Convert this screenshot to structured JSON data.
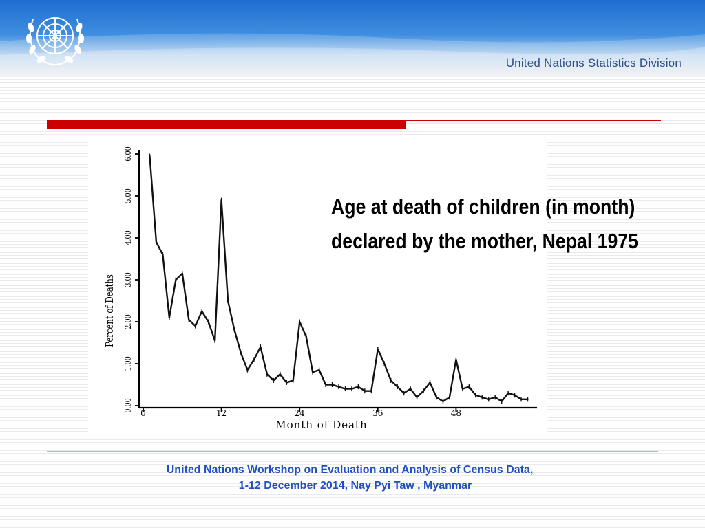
{
  "header": {
    "org_name": "United Nations Statistics Division",
    "logo_icon": "un-emblem-icon",
    "colors": {
      "top_blue": "#1d6fd0",
      "org_text": "#2f4f86"
    }
  },
  "accent_color": "#cc0000",
  "chart_title_lines": [
    "Age at death of children (in month)",
    "declared by the mother, Nepal 1975"
  ],
  "chart_data": {
    "type": "line",
    "xlabel": "Month of Death",
    "ylabel": "Percent of Deaths",
    "xlim": [
      0,
      60
    ],
    "ylim": [
      0,
      6
    ],
    "x_ticks": [
      0,
      12,
      24,
      36,
      48
    ],
    "x_tick_labels": [
      "0",
      "12",
      "24",
      "36",
      "48"
    ],
    "y_ticks": [
      0,
      1,
      2,
      3,
      4,
      5,
      6
    ],
    "y_tick_labels": [
      "0.00",
      "1.00",
      "2.00",
      "3.00",
      "4.00",
      "5.00",
      "6.00"
    ],
    "grid": false,
    "series": [
      {
        "x": [
          1,
          2,
          3,
          4,
          5,
          6,
          7,
          8,
          9,
          10,
          11,
          12,
          13,
          14,
          15,
          16,
          17,
          18,
          19,
          20,
          21,
          22,
          23,
          24,
          25,
          26,
          27,
          28,
          29,
          30,
          31,
          32,
          33,
          34,
          35,
          36,
          37,
          38,
          39,
          40,
          41,
          42,
          43,
          44,
          45,
          46,
          47,
          48,
          49,
          50,
          51,
          52,
          53,
          54,
          55,
          56,
          57,
          58,
          59
        ],
        "y": [
          5.95,
          3.9,
          3.6,
          2.1,
          3.0,
          3.15,
          2.05,
          1.9,
          2.25,
          2.0,
          1.55,
          4.9,
          2.5,
          1.8,
          1.25,
          0.85,
          1.1,
          1.4,
          0.75,
          0.6,
          0.75,
          0.55,
          0.6,
          2.0,
          1.65,
          0.8,
          0.85,
          0.5,
          0.5,
          0.45,
          0.4,
          0.4,
          0.45,
          0.35,
          0.35,
          1.35,
          1.0,
          0.6,
          0.45,
          0.3,
          0.4,
          0.2,
          0.35,
          0.55,
          0.2,
          0.1,
          0.2,
          1.1,
          0.4,
          0.45,
          0.25,
          0.2,
          0.15,
          0.2,
          0.1,
          0.3,
          0.25,
          0.15,
          0.15
        ]
      }
    ]
  },
  "footer": {
    "line1": "United Nations Workshop on  Evaluation and Analysis of Census Data,",
    "line2": "1-12 December 2014,  Nay Pyi Taw , Myanmar"
  }
}
